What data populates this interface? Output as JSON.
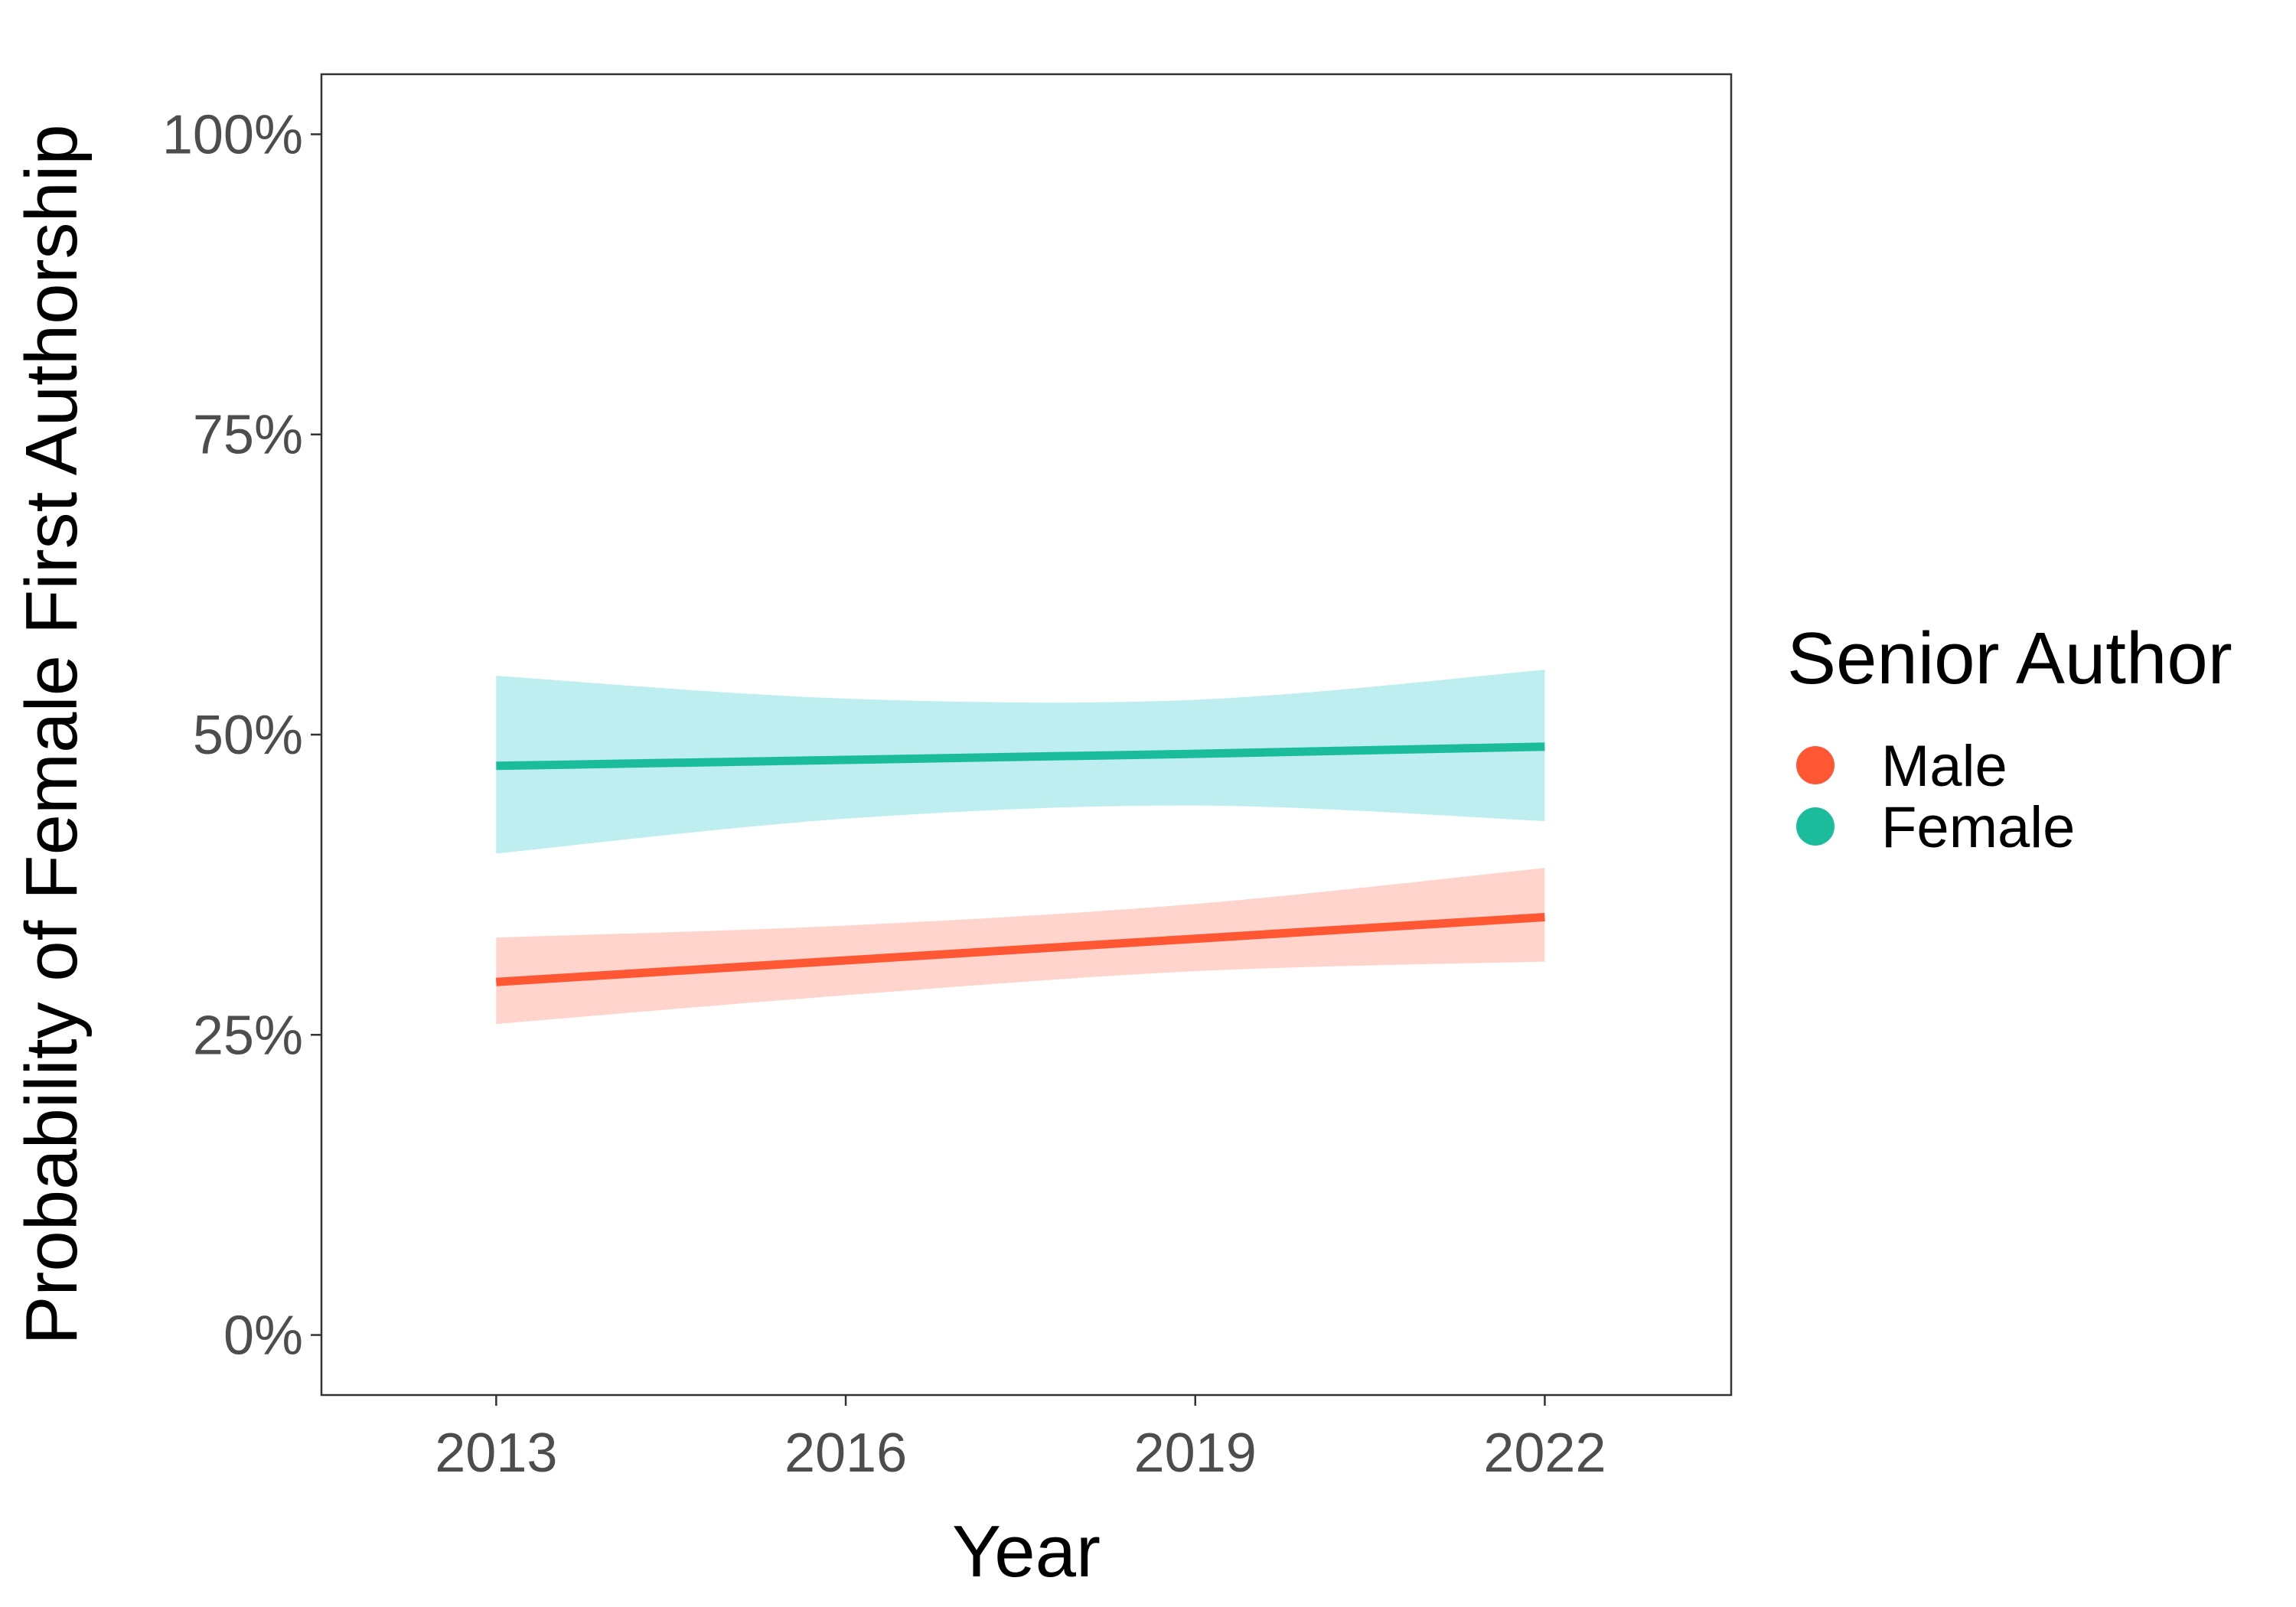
{
  "chart_data": {
    "type": "line",
    "xlabel": "Year",
    "ylabel": "Probability of Female First Authorship",
    "x_ticks": [
      "2013",
      "2016",
      "2019",
      "2022"
    ],
    "y_ticks": [
      "0%",
      "25%",
      "50%",
      "75%",
      "100%"
    ],
    "xlim": [
      2011.5,
      2023.6
    ],
    "ylim": [
      -0.05,
      1.05
    ],
    "grid": false,
    "legend": {
      "title": "Senior Author",
      "placement": "right"
    },
    "series": [
      {
        "name": "Male",
        "color": "#ff5733",
        "ribbon_color": "#ffd4cc",
        "x": [
          2013,
          2016,
          2019,
          2022
        ],
        "y": [
          0.294,
          0.312,
          0.33,
          0.348
        ],
        "lower": [
          0.259,
          0.283,
          0.303,
          0.311
        ],
        "upper": [
          0.331,
          0.341,
          0.359,
          0.389
        ]
      },
      {
        "name": "Female",
        "color": "#1abc9c",
        "ribbon_color": "#beeef0",
        "x": [
          2013,
          2016,
          2019,
          2022
        ],
        "y": [
          0.474,
          0.479,
          0.484,
          0.49
        ],
        "lower": [
          0.401,
          0.43,
          0.441,
          0.428
        ],
        "upper": [
          0.549,
          0.53,
          0.529,
          0.554
        ]
      }
    ]
  }
}
